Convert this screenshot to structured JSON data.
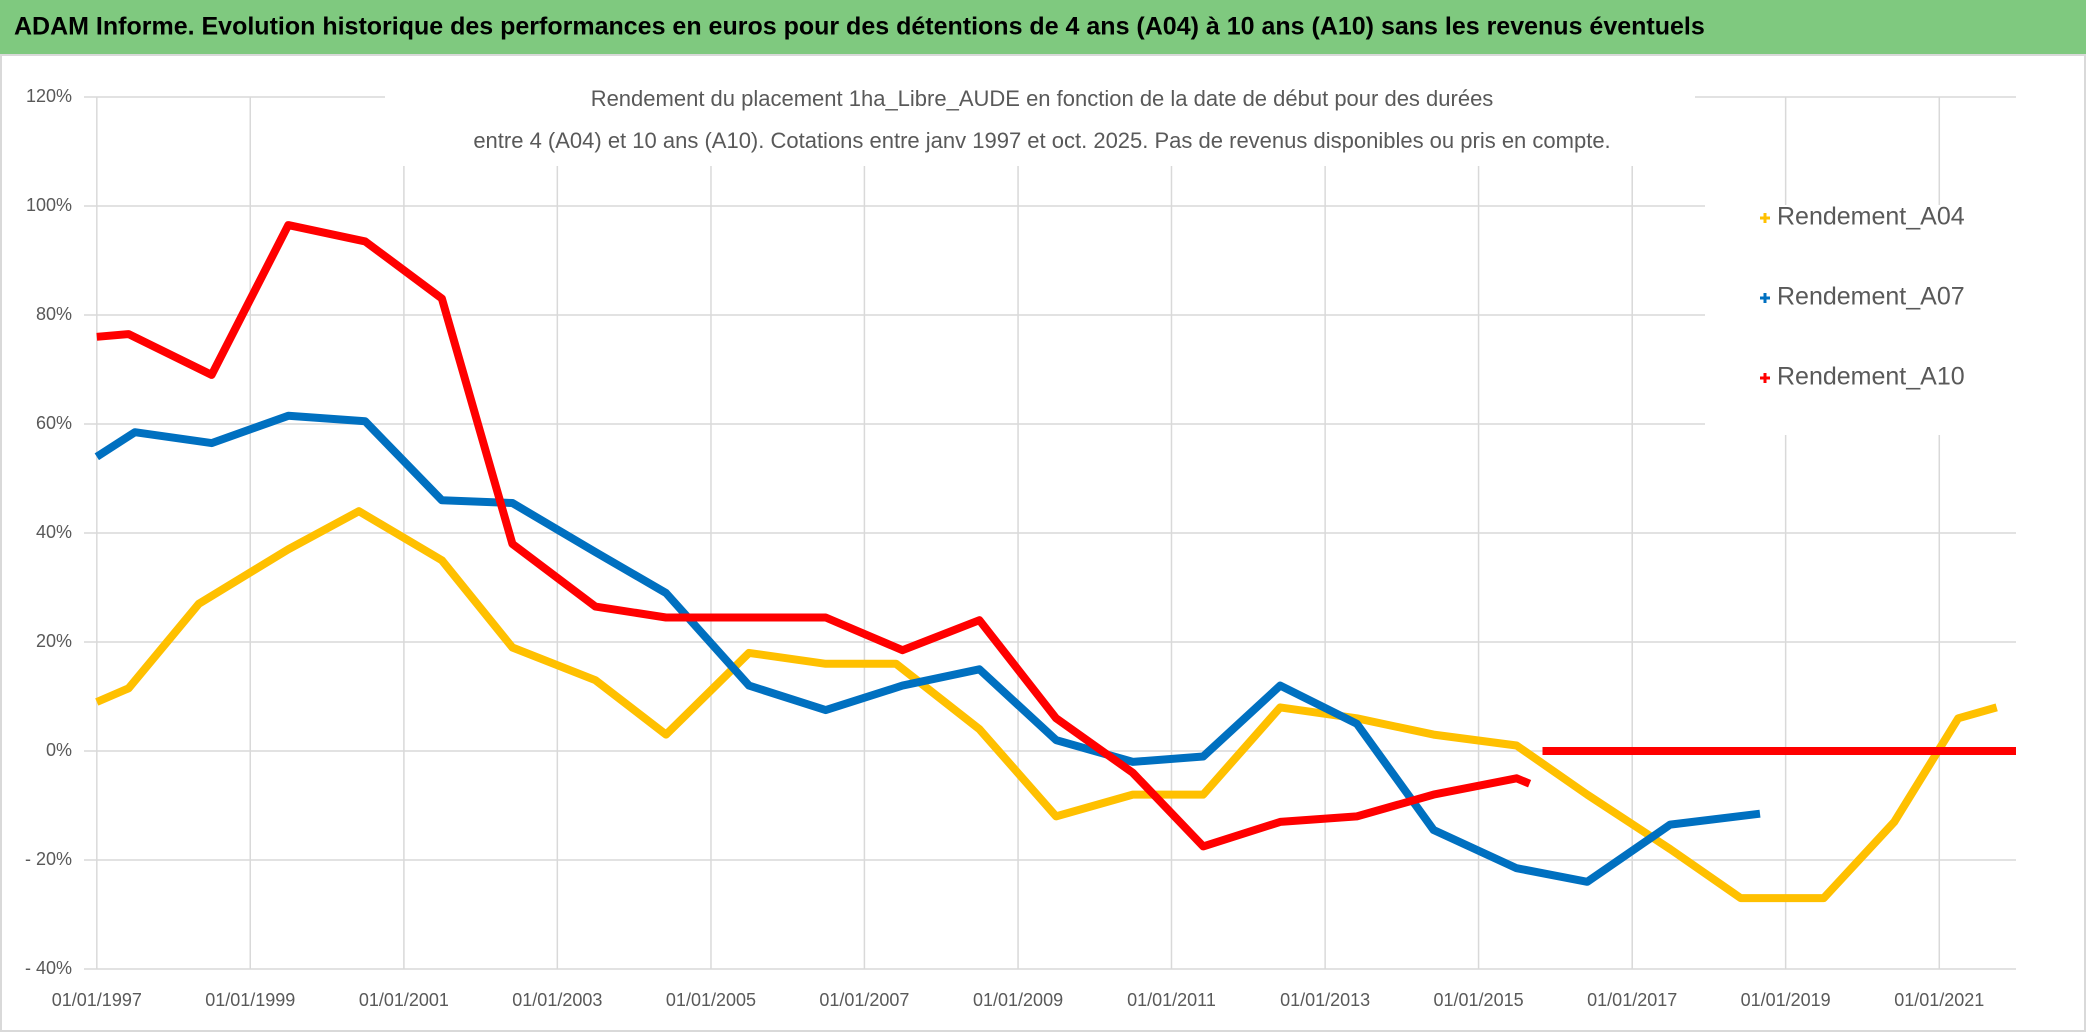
{
  "chart_data": {
    "type": "line",
    "title": "ADAM Informe. Evolution historique des performances en euros pour des détentions de 4 ans (A04) à 10 ans (A10) sans les revenus éventuels",
    "subtitle": [
      "Rendement du placement 1ha_Libre_AUDE en fonction de la date de début pour des durées",
      "entre 4 (A04) et 10 ans (A10). Cotations entre janv 1997 et oct. 2025. Pas de revenus disponibles ou pris en compte."
    ],
    "xlim": [
      "01/11/1996",
      "01/01/2022"
    ],
    "xticks": [
      "01/01/1997",
      "01/01/1999",
      "01/01/2001",
      "01/01/2003",
      "01/01/2005",
      "01/01/2007",
      "01/01/2009",
      "01/01/2011",
      "01/01/2013",
      "01/01/2015",
      "01/01/2017",
      "01/01/2019",
      "01/01/2021"
    ],
    "ylim": [
      -40,
      120
    ],
    "yticks": [
      {
        "value": -40,
        "label": "- 40%"
      },
      {
        "value": -20,
        "label": "- 20%"
      },
      {
        "value": 0,
        "label": "0%"
      },
      {
        "value": 20,
        "label": "20%"
      },
      {
        "value": 40,
        "label": "40%"
      },
      {
        "value": 60,
        "label": "60%"
      },
      {
        "value": 80,
        "label": "80%"
      },
      {
        "value": 100,
        "label": "100%"
      },
      {
        "value": 120,
        "label": "120%"
      }
    ],
    "grid": true,
    "legend": "right",
    "series": [
      {
        "name": "Rendement_A04",
        "color": "#ffc000",
        "x": [
          "01/01/1997",
          "01/06/1997",
          "01/05/1998",
          "01/07/1999",
          "01/06/2000",
          "01/07/2001",
          "01/06/2002",
          "01/07/2003",
          "01/06/2004",
          "01/07/2005",
          "01/07/2006",
          "01/06/2007",
          "01/07/2008",
          "01/07/2009",
          "01/07/2010",
          "01/06/2011",
          "01/06/2012",
          "01/06/2013",
          "01/06/2014",
          "01/07/2015",
          "01/06/2016",
          "01/07/2017",
          "01/06/2018",
          "01/07/2019",
          "01/06/2020",
          "01/04/2021",
          "01/10/2021"
        ],
        "values": [
          9,
          11.5,
          27,
          37,
          44,
          35,
          19,
          13,
          3,
          18,
          16,
          16,
          4,
          -12,
          -8,
          -8,
          8,
          6,
          3,
          1,
          -8,
          -18,
          -27,
          -27,
          -13,
          6,
          8
        ]
      },
      {
        "name": "Rendement_A07",
        "color": "#0070c0",
        "x": [
          "01/01/1997",
          "01/07/1997",
          "01/07/1998",
          "01/07/1999",
          "01/07/2000",
          "01/07/2001",
          "01/06/2002",
          "01/07/2003",
          "01/06/2004",
          "01/07/2005",
          "01/07/2006",
          "01/07/2007",
          "01/07/2008",
          "01/07/2009",
          "01/07/2010",
          "01/06/2011",
          "01/06/2012",
          "01/06/2013",
          "01/06/2014",
          "01/07/2015",
          "01/06/2016",
          "01/07/2017",
          "01/09/2018"
        ],
        "values": [
          54,
          58.5,
          56.5,
          61.5,
          60.5,
          46,
          45.5,
          36.5,
          29,
          12,
          7.5,
          12,
          15,
          2,
          -2,
          -1,
          12,
          5,
          -14.5,
          -21.5,
          -24,
          -13.5,
          -11.5
        ]
      },
      {
        "name": "Rendement_A10",
        "color": "#ff0000",
        "x": [
          "01/01/1997",
          "01/06/1997",
          "01/07/1998",
          "01/07/1999",
          "01/07/2000",
          "01/07/2001",
          "01/06/2002",
          "01/07/2003",
          "01/06/2004",
          "01/07/2005",
          "01/07/2006",
          "01/07/2007",
          "01/07/2008",
          "01/07/2009",
          "01/07/2010",
          "01/06/2011",
          "01/06/2012",
          "01/06/2013",
          "01/06/2014",
          "01/07/2015",
          "01/09/2015",
          "01/10/2015",
          "01/11/2015",
          "01/01/2022"
        ],
        "values": [
          76,
          76.5,
          69,
          96.5,
          93.5,
          83,
          38,
          26.5,
          24.5,
          24.5,
          24.5,
          18.5,
          24,
          6,
          -4,
          -17.5,
          -13,
          -12,
          -8,
          -5,
          -6,
          null,
          0,
          0
        ]
      }
    ]
  }
}
